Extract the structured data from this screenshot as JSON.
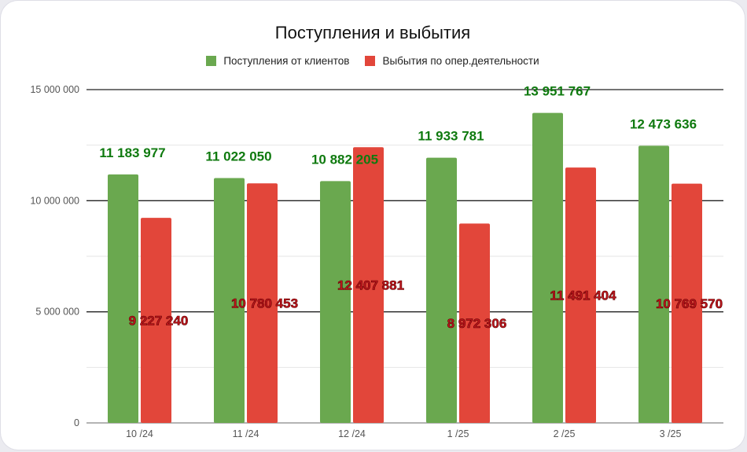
{
  "chart_data": {
    "type": "bar",
    "title": "Поступления и выбытия",
    "categories": [
      "10 /24",
      "11 /24",
      "12 /24",
      "1 /25",
      "2 /25",
      "3 /25"
    ],
    "series": [
      {
        "name": "Поступления от клиентов",
        "color": "#6aa84f",
        "values": [
          11183977,
          11022050,
          10882205,
          11933781,
          13951767,
          12473636
        ],
        "value_labels": [
          "11 183 977",
          "11 022 050",
          "10 882 205",
          "11 933 781",
          "13 951 767",
          "12 473 636"
        ]
      },
      {
        "name": "Выбытия по опер.деятельности",
        "color": "#e2463a",
        "values": [
          9227240,
          10780453,
          12407881,
          8972306,
          11491404,
          10769570
        ],
        "value_labels": [
          "9 227 240",
          "10 780 453",
          "12 407 881",
          "8 972 306",
          "11 491 404",
          "10 769 570"
        ]
      }
    ],
    "ylim": [
      0,
      15000000
    ],
    "y_ticks": [
      0,
      5000000,
      10000000,
      15000000
    ],
    "y_tick_labels": [
      "0",
      "5 000 000",
      "10 000 000",
      "15 000 000"
    ],
    "grid": true,
    "legend_position": "top-center",
    "xlabel": "",
    "ylabel": ""
  }
}
